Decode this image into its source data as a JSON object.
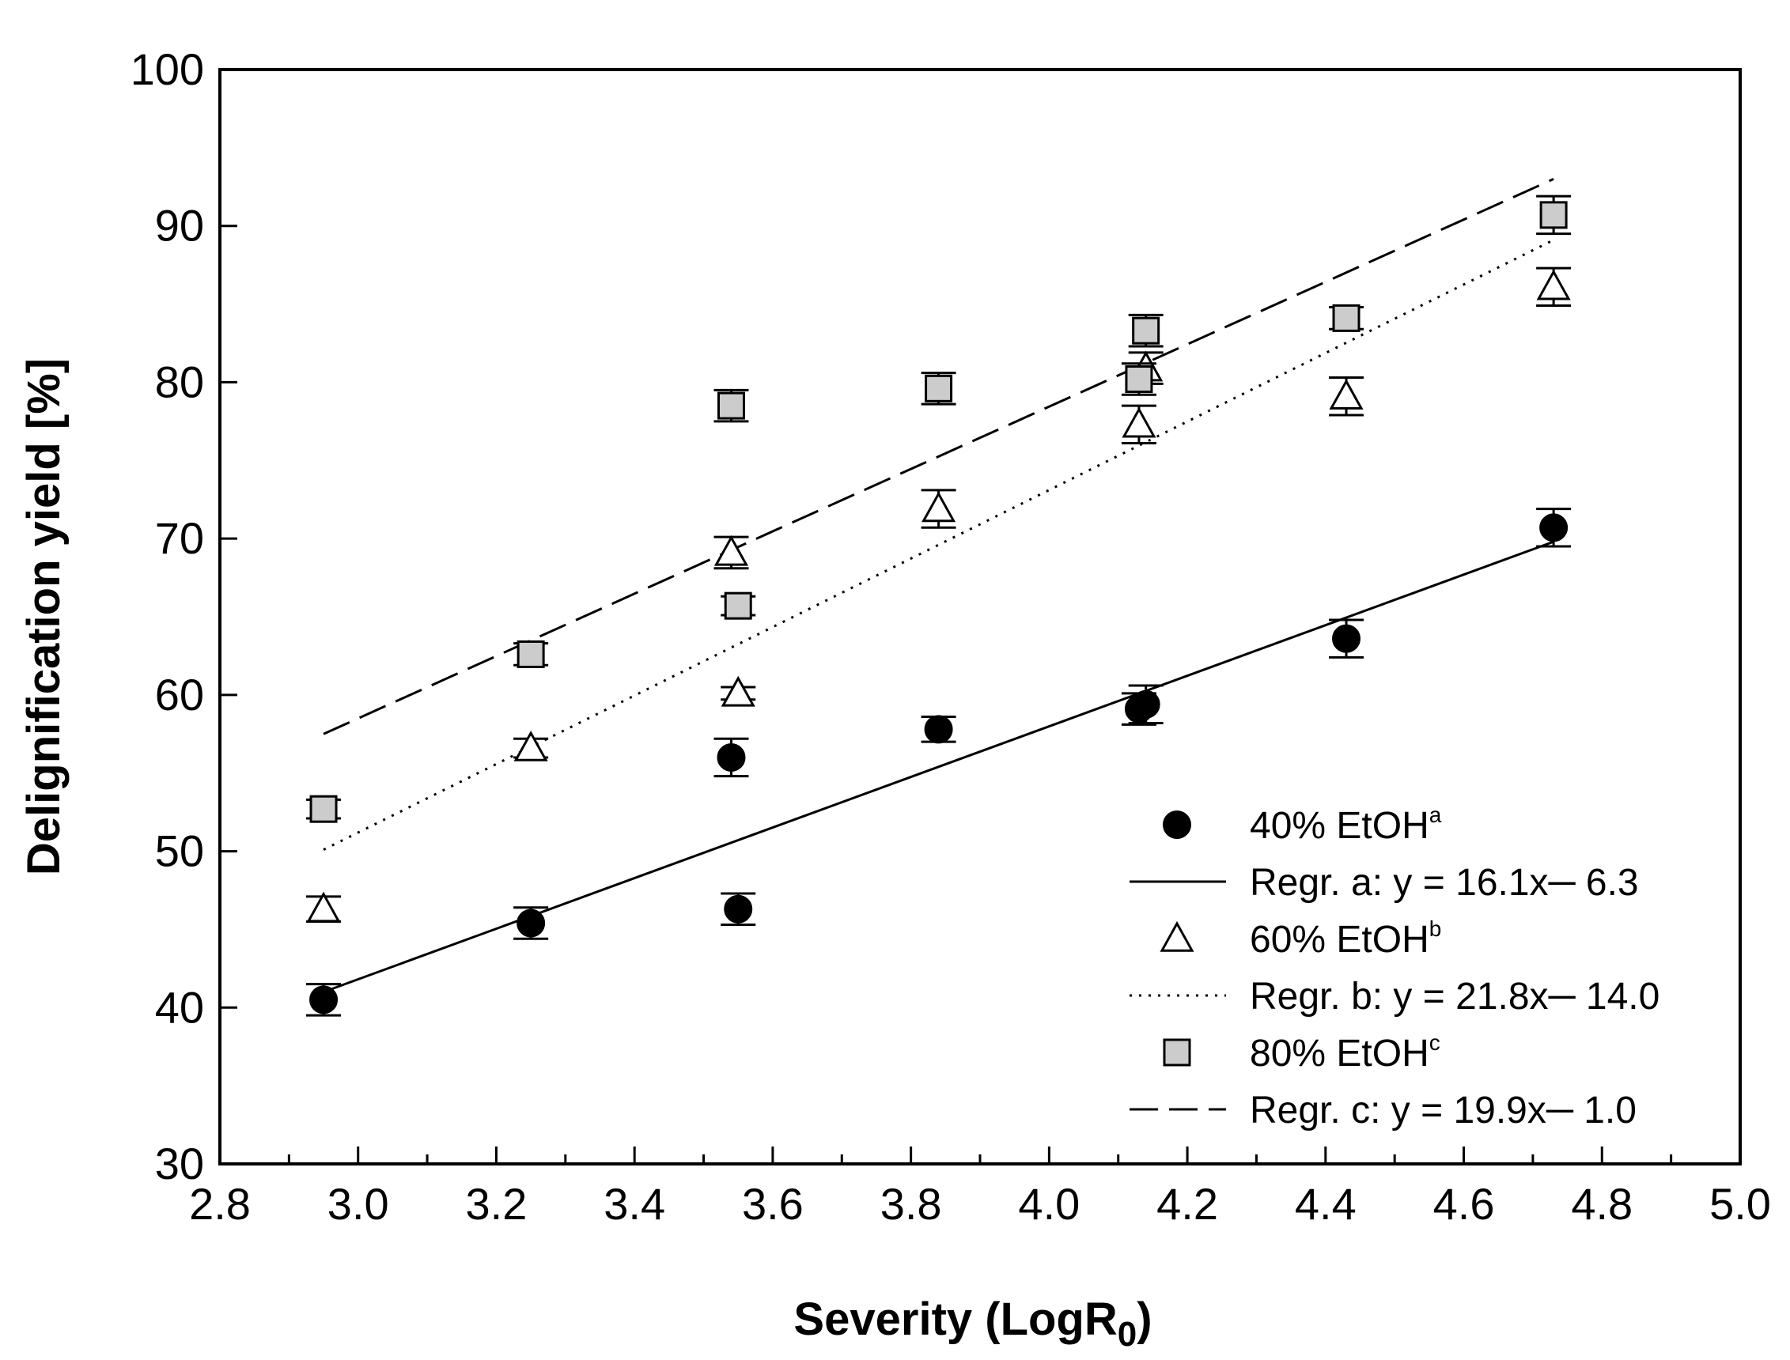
{
  "chart_data": {
    "type": "scatter",
    "title": "",
    "xlabel": "Severity (LogR",
    "xlabel_sub": "0",
    "xlabel_end": ")",
    "ylabel": "Delignification yield [%]",
    "xlim": [
      2.8,
      5.0
    ],
    "ylim": [
      30,
      100
    ],
    "xticks": [
      "2.8",
      "3.0",
      "3.2",
      "3.4",
      "3.6",
      "3.8",
      "4.0",
      "4.2",
      "4.4",
      "4.6",
      "4.8",
      "5.0"
    ],
    "yticks": [
      "30",
      "40",
      "50",
      "60",
      "70",
      "80",
      "90",
      "100"
    ],
    "grid": false,
    "legend_position": "bottom-right",
    "series": [
      {
        "name": "40% EtOH",
        "sup": "a",
        "marker": "circle",
        "color": "#000000",
        "x": [
          2.95,
          3.25,
          3.54,
          3.55,
          3.84,
          4.13,
          4.14,
          4.43,
          4.73
        ],
        "y": [
          40.5,
          45.4,
          56.0,
          46.3,
          57.8,
          59.1,
          59.4,
          63.6,
          70.7
        ],
        "err": [
          1.0,
          1.0,
          1.2,
          1.0,
          0.8,
          1.0,
          1.2,
          1.2,
          1.2
        ]
      },
      {
        "name": "60% EtOH",
        "sup": "b",
        "marker": "triangle",
        "color": "#ffffff",
        "x": [
          2.95,
          3.25,
          3.54,
          3.55,
          3.84,
          4.13,
          4.14,
          4.43,
          4.73
        ],
        "y": [
          46.3,
          56.6,
          69.1,
          60.1,
          71.9,
          77.3,
          80.9,
          79.1,
          86.1
        ],
        "err": [
          0.8,
          0.6,
          1.0,
          0.4,
          1.2,
          1.2,
          1.0,
          1.2,
          1.2
        ]
      },
      {
        "name": "80% EtOH",
        "sup": "c",
        "marker": "square",
        "color": "#cccccc",
        "x": [
          2.95,
          3.25,
          3.54,
          3.55,
          3.84,
          4.13,
          4.14,
          4.43,
          4.73
        ],
        "y": [
          52.7,
          62.6,
          78.5,
          65.7,
          79.6,
          80.2,
          83.3,
          84.1,
          90.7
        ],
        "err": [
          0.6,
          0.7,
          1.0,
          0.6,
          1.0,
          1.0,
          1.0,
          0.7,
          1.2
        ]
      }
    ],
    "regressions": [
      {
        "name": "Regr. a: y = 16.1x─ 6.3",
        "style": "solid",
        "x": [
          2.95,
          4.73
        ],
        "y": [
          41.0,
          69.8
        ]
      },
      {
        "name": "Regr. b: y = 21.8x─ 14.0",
        "style": "dotted",
        "x": [
          2.95,
          4.73
        ],
        "y": [
          50.1,
          89.1
        ]
      },
      {
        "name": "Regr. c: y = 19.9x─ 1.0",
        "style": "dashed",
        "x": [
          2.95,
          4.73
        ],
        "y": [
          57.5,
          93.0
        ]
      }
    ],
    "legend": [
      {
        "kind": "marker",
        "series": 0,
        "label": "40% EtOH",
        "sup": "a"
      },
      {
        "kind": "line",
        "regression": 0,
        "label": "Regr. a: y = 16.1x─ 6.3"
      },
      {
        "kind": "marker",
        "series": 1,
        "label": "60% EtOH",
        "sup": "b"
      },
      {
        "kind": "line",
        "regression": 1,
        "label": "Regr. b: y = 21.8x─ 14.0"
      },
      {
        "kind": "marker",
        "series": 2,
        "label": "80% EtOH",
        "sup": "c"
      },
      {
        "kind": "line",
        "regression": 2,
        "label": "Regr. c: y = 19.9x─ 1.0"
      }
    ]
  }
}
